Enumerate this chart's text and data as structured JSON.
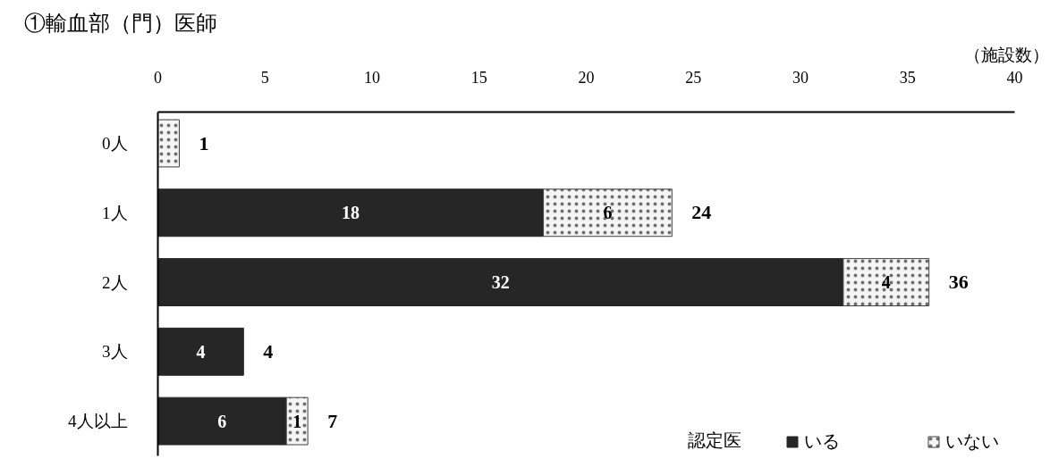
{
  "chart_data": {
    "type": "bar",
    "orientation": "horizontal",
    "stacked": true,
    "title": "①輸血部（門）医師",
    "xlabel": "（施設数）",
    "legend_title": "認定医",
    "categories": [
      "0人",
      "1人",
      "2人",
      "3人",
      "4人以上"
    ],
    "series": [
      {
        "name": "いる",
        "color": "#262626",
        "values": [
          0,
          18,
          32,
          4,
          6
        ],
        "value_labels": [
          null,
          "18",
          "32",
          "4",
          "6"
        ]
      },
      {
        "name": "いない",
        "color": "#f5f5f5",
        "values": [
          1,
          6,
          4,
          0,
          1
        ],
        "value_labels": [
          null,
          "6",
          "4",
          null,
          "1"
        ]
      }
    ],
    "totals": [
      "1",
      "24",
      "36",
      "4",
      "7"
    ],
    "xlim": [
      0,
      40
    ],
    "xticks": [
      0,
      5,
      10,
      15,
      20,
      25,
      30,
      35,
      40
    ],
    "legend": "bottom right"
  }
}
